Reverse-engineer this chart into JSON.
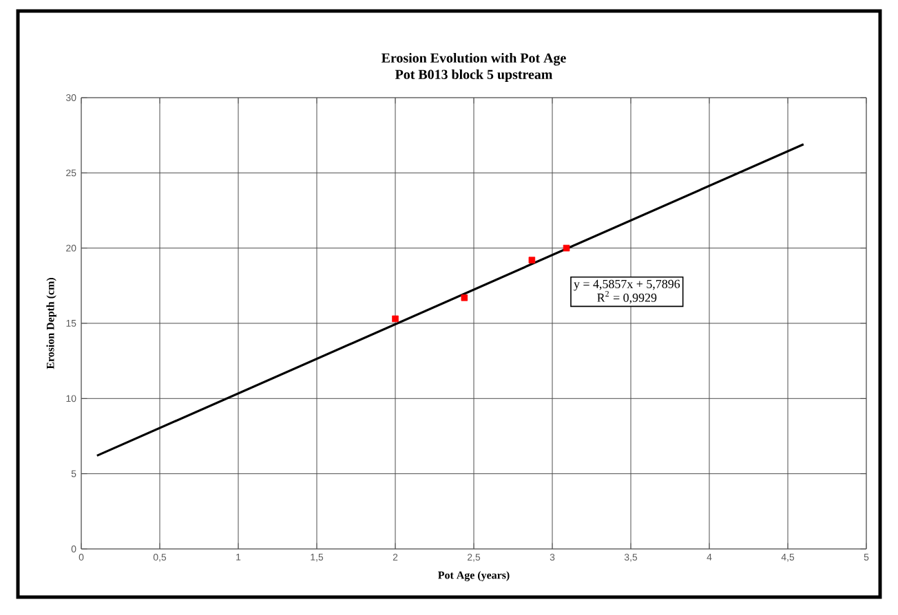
{
  "chart_data": {
    "type": "scatter",
    "title": "Erosion Evolution with  Pot Age",
    "subtitle": "Pot B013 block 5 upstream",
    "xlabel": "Pot Age (years)",
    "ylabel": "Erosion Depth (cm)",
    "annotations": [
      "y = 4,5857x + 5,7896",
      "R$^{2}$ = 0,9929"
    ],
    "series": [
      {
        "color": "#ff0000",
        "marker": "square",
        "x": [
          2.0,
          2.44,
          2.87,
          3.09
        ],
        "values": [
          15.3,
          16.7,
          19.2,
          20.0
        ]
      },
      {
        "type": "line",
        "color": "#000000",
        "marker": "none",
        "x": [
          0.1,
          4.6
        ],
        "values": [
          6.2,
          26.9
        ]
      }
    ],
    "xlim": [
      0,
      5
    ],
    "ylim": [
      0,
      30
    ],
    "xticks": [
      0,
      {
        "value": 0.5,
        "label": "0,5"
      },
      1,
      {
        "value": 1.5,
        "label": "1,5"
      },
      2,
      {
        "value": 2.5,
        "label": "2,5"
      },
      3,
      {
        "value": 3.5,
        "label": "3,5"
      },
      4,
      {
        "value": 4.5,
        "label": "4,5"
      },
      5
    ],
    "yticks": [
      0,
      5,
      10,
      15,
      20,
      25,
      30
    ],
    "grid": true
  }
}
